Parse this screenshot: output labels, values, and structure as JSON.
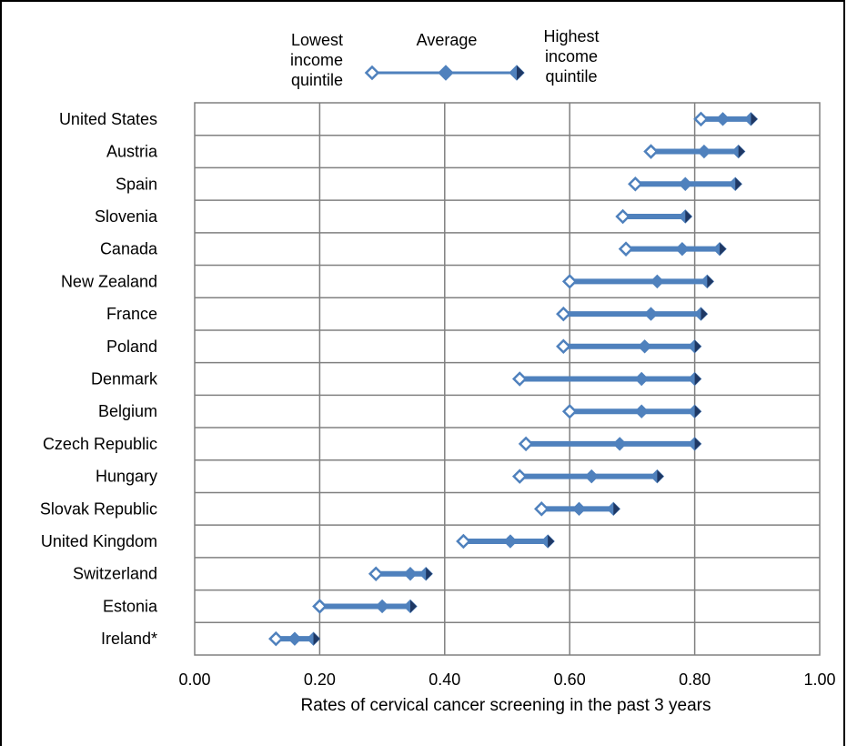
{
  "chart_data": {
    "type": "dumbbell",
    "xlabel": "Rates of cervical cancer screening in the past 3 years",
    "xlim": [
      0,
      1
    ],
    "xticks": [
      "0.00",
      "0.20",
      "0.40",
      "0.60",
      "0.80",
      "1.00"
    ],
    "xtick_values": [
      0,
      0.2,
      0.4,
      0.6,
      0.8,
      1.0
    ],
    "grid": true,
    "legend": {
      "placement": "top",
      "low_label_lines": [
        "Lowest",
        "income",
        "quintile"
      ],
      "avg_label": "Average",
      "high_label_lines": [
        "Highest",
        "income",
        "quintile"
      ]
    },
    "categories": [
      "United States",
      "Austria",
      "Spain",
      "Slovenia",
      "Canada",
      "New Zealand",
      "France",
      "Poland",
      "Denmark",
      "Belgium",
      "Czech Republic",
      "Hungary",
      "Slovak Republic",
      "United Kingdom",
      "Switzerland",
      "Estonia",
      "Ireland*"
    ],
    "series": [
      {
        "name": "Lowest income quintile",
        "values": [
          0.81,
          0.73,
          0.705,
          0.685,
          0.69,
          0.6,
          0.59,
          0.59,
          0.52,
          0.6,
          0.53,
          0.52,
          0.555,
          0.43,
          0.29,
          0.2,
          0.13
        ]
      },
      {
        "name": "Average",
        "values": [
          0.845,
          0.815,
          0.785,
          0.785,
          0.78,
          0.74,
          0.73,
          0.72,
          0.715,
          0.715,
          0.68,
          0.635,
          0.615,
          0.505,
          0.345,
          0.3,
          0.16
        ]
      },
      {
        "name": "Highest income quintile",
        "values": [
          0.89,
          0.87,
          0.865,
          0.785,
          0.84,
          0.82,
          0.81,
          0.8,
          0.8,
          0.8,
          0.8,
          0.74,
          0.67,
          0.565,
          0.37,
          0.345,
          0.19
        ]
      }
    ],
    "colors": {
      "line": "#4f81bd",
      "marker_fill": "#4f81bd",
      "marker_dark": "#1f3864",
      "grid": "#808080"
    }
  }
}
